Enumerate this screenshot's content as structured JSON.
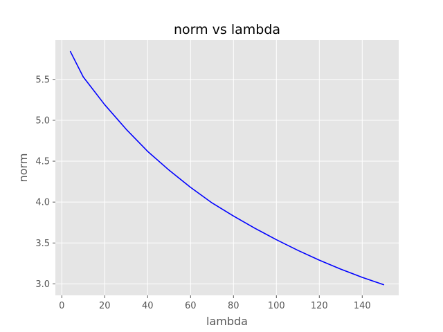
{
  "chart_data": {
    "type": "line",
    "title": "norm vs lambda",
    "xlabel": "lambda",
    "ylabel": "norm",
    "xlim": [
      -3,
      157
    ],
    "ylim": [
      2.86,
      5.98
    ],
    "grid": true,
    "style": "ggplot",
    "x_ticks": [
      0,
      20,
      40,
      60,
      80,
      100,
      120,
      140
    ],
    "y_ticks": [
      3.0,
      3.5,
      4.0,
      4.5,
      5.0,
      5.5
    ],
    "series": [
      {
        "color": "#0000ff",
        "x": [
          4,
          10,
          20,
          30,
          40,
          50,
          60,
          70,
          80,
          90,
          100,
          110,
          120,
          130,
          140,
          150
        ],
        "y": [
          5.84,
          5.53,
          5.19,
          4.89,
          4.62,
          4.39,
          4.18,
          3.99,
          3.83,
          3.68,
          3.54,
          3.41,
          3.29,
          3.18,
          3.08,
          2.99
        ]
      }
    ]
  }
}
